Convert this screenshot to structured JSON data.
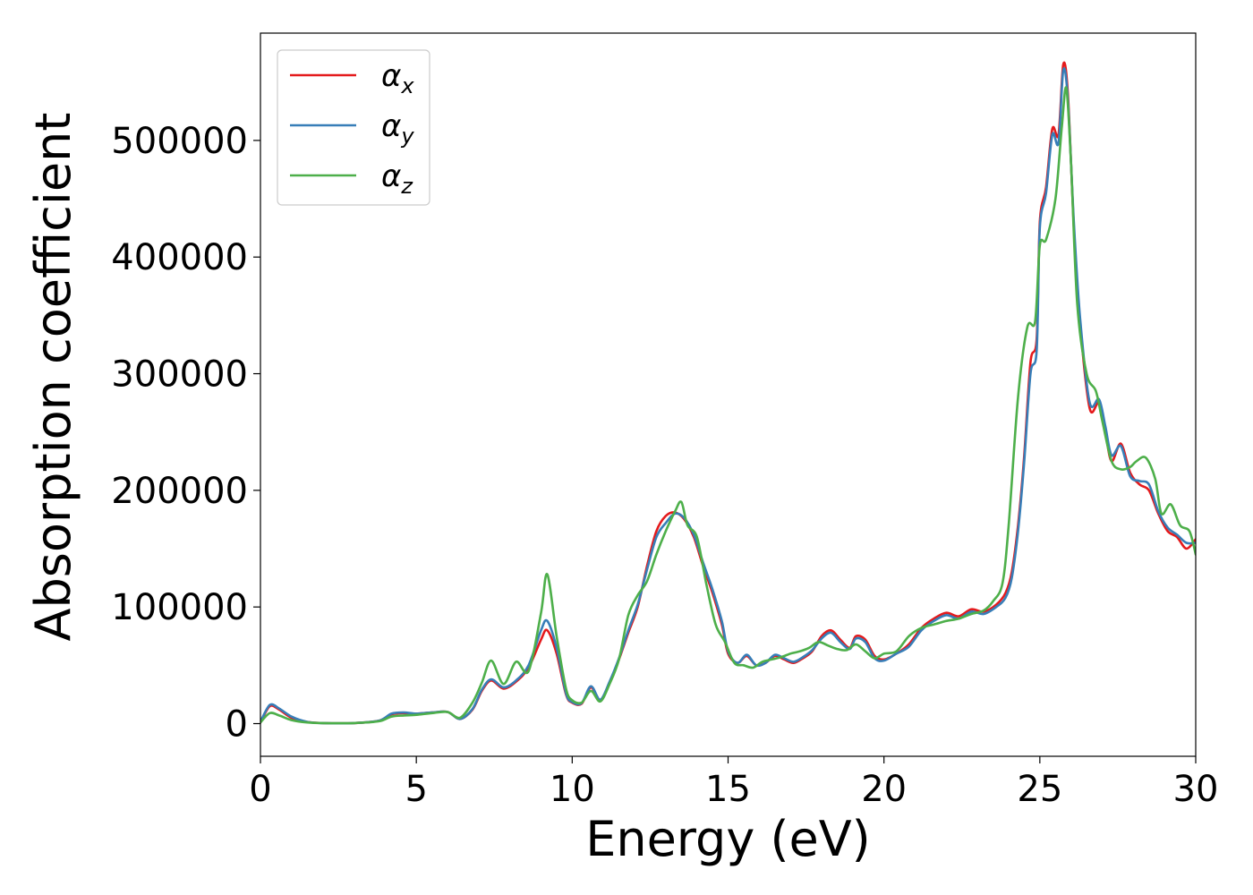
{
  "chart_data": {
    "type": "line",
    "title": "",
    "xlabel": "Energy (eV)",
    "ylabel": "Absorption coefficient",
    "xlim": [
      0,
      30
    ],
    "ylim": [
      -28000,
      592000
    ],
    "xticks": [
      0,
      5,
      10,
      15,
      20,
      25,
      30
    ],
    "yticks": [
      0,
      100000,
      200000,
      300000,
      400000,
      500000
    ],
    "xtick_labels": [
      "0",
      "5",
      "10",
      "15",
      "20",
      "25",
      "30"
    ],
    "ytick_labels": [
      "0",
      "100000",
      "200000",
      "300000",
      "400000",
      "500000"
    ],
    "grid": false,
    "legend_position": "top-left",
    "series": [
      {
        "name": "αx",
        "name_base": "α",
        "name_sub": "x",
        "color": "#e41a1c",
        "x": [
          0,
          0.3,
          0.6,
          1.0,
          1.5,
          2.0,
          3.0,
          3.8,
          4.2,
          4.6,
          5.0,
          5.5,
          6.0,
          6.4,
          6.8,
          7.1,
          7.4,
          7.8,
          8.2,
          8.6,
          9.0,
          9.2,
          9.5,
          9.8,
          10.0,
          10.3,
          10.6,
          10.9,
          11.2,
          11.5,
          11.8,
          12.1,
          12.4,
          12.7,
          13.0,
          13.3,
          13.6,
          13.9,
          14.2,
          14.5,
          14.8,
          15.0,
          15.3,
          15.6,
          15.9,
          16.2,
          16.5,
          16.8,
          17.1,
          17.4,
          17.7,
          18.0,
          18.3,
          18.6,
          18.9,
          19.1,
          19.4,
          19.7,
          20.0,
          20.4,
          20.8,
          21.2,
          21.6,
          22.0,
          22.4,
          22.8,
          23.2,
          23.6,
          23.9,
          24.1,
          24.3,
          24.5,
          24.7,
          24.9,
          25.0,
          25.2,
          25.4,
          25.6,
          25.75,
          25.9,
          26.1,
          26.3,
          26.6,
          26.9,
          27.1,
          27.3,
          27.6,
          27.9,
          28.2,
          28.5,
          28.8,
          29.1,
          29.4,
          29.7,
          30.0
        ],
        "y": [
          1000,
          15000,
          12000,
          5000,
          1500,
          500,
          500,
          2500,
          8000,
          9000,
          8500,
          9500,
          10000,
          4000,
          12000,
          28000,
          37000,
          30000,
          36000,
          48000,
          72000,
          80000,
          60000,
          25000,
          18000,
          17000,
          31000,
          20000,
          35000,
          55000,
          78000,
          100000,
          135000,
          165000,
          178000,
          181000,
          175000,
          160000,
          135000,
          112000,
          85000,
          60000,
          52000,
          58000,
          50000,
          52000,
          58000,
          55000,
          52000,
          56000,
          62000,
          75000,
          80000,
          72000,
          65000,
          75000,
          72000,
          58000,
          55000,
          60000,
          68000,
          82000,
          90000,
          95000,
          92000,
          98000,
          96000,
          102000,
          112000,
          130000,
          170000,
          230000,
          310000,
          330000,
          430000,
          460000,
          510000,
          505000,
          565000,
          540000,
          420000,
          340000,
          270000,
          275000,
          250000,
          225000,
          240000,
          215000,
          205000,
          200000,
          180000,
          165000,
          160000,
          150000,
          158000
        ]
      },
      {
        "name": "αy",
        "name_base": "α",
        "name_sub": "y",
        "color": "#377eb8",
        "x": [
          0,
          0.3,
          0.6,
          1.0,
          1.5,
          2.0,
          3.0,
          3.8,
          4.2,
          4.6,
          5.0,
          5.5,
          6.0,
          6.4,
          6.8,
          7.1,
          7.4,
          7.8,
          8.2,
          8.6,
          9.0,
          9.2,
          9.5,
          9.8,
          10.0,
          10.3,
          10.6,
          10.9,
          11.2,
          11.5,
          11.8,
          12.1,
          12.4,
          12.7,
          13.0,
          13.3,
          13.6,
          13.9,
          14.2,
          14.5,
          14.8,
          15.0,
          15.3,
          15.6,
          15.9,
          16.2,
          16.5,
          16.8,
          17.1,
          17.4,
          17.7,
          18.0,
          18.3,
          18.6,
          18.9,
          19.1,
          19.4,
          19.7,
          20.0,
          20.4,
          20.8,
          21.2,
          21.6,
          22.0,
          22.4,
          22.8,
          23.2,
          23.6,
          23.9,
          24.1,
          24.3,
          24.5,
          24.7,
          24.9,
          25.0,
          25.2,
          25.4,
          25.6,
          25.75,
          25.9,
          26.1,
          26.3,
          26.6,
          26.9,
          27.1,
          27.3,
          27.6,
          27.9,
          28.2,
          28.5,
          28.8,
          29.1,
          29.4,
          29.7,
          30.0
        ],
        "y": [
          1500,
          16000,
          13000,
          6000,
          1500,
          500,
          500,
          2500,
          8500,
          9500,
          8500,
          9500,
          10000,
          4000,
          12500,
          29000,
          38000,
          31000,
          37000,
          50000,
          80000,
          88000,
          65000,
          26000,
          18500,
          17500,
          32000,
          20500,
          36000,
          56000,
          80000,
          102000,
          132000,
          160000,
          172000,
          180000,
          176000,
          162000,
          138000,
          115000,
          88000,
          62000,
          52000,
          59000,
          50000,
          52000,
          59000,
          56000,
          53000,
          57000,
          63000,
          73000,
          78000,
          70000,
          64000,
          73000,
          70000,
          56000,
          54000,
          60000,
          66000,
          80000,
          88000,
          93000,
          90000,
          96000,
          94000,
          100000,
          108000,
          125000,
          165000,
          225000,
          300000,
          320000,
          425000,
          455000,
          505000,
          498000,
          560000,
          535000,
          425000,
          345000,
          275000,
          278000,
          255000,
          230000,
          238000,
          212000,
          208000,
          205000,
          182000,
          168000,
          162000,
          155000,
          155000
        ]
      },
      {
        "name": "αz",
        "name_base": "α",
        "name_sub": "z",
        "color": "#4daf4a",
        "x": [
          0,
          0.3,
          0.6,
          1.0,
          1.5,
          2.0,
          3.0,
          3.8,
          4.2,
          4.6,
          5.0,
          5.5,
          6.0,
          6.4,
          6.8,
          7.1,
          7.4,
          7.8,
          8.2,
          8.6,
          9.0,
          9.2,
          9.5,
          9.8,
          10.0,
          10.3,
          10.6,
          10.9,
          11.2,
          11.5,
          11.8,
          12.1,
          12.4,
          12.7,
          13.0,
          13.3,
          13.5,
          13.7,
          14.0,
          14.3,
          14.6,
          14.9,
          15.2,
          15.5,
          15.8,
          16.1,
          16.4,
          16.7,
          17.0,
          17.3,
          17.6,
          17.9,
          18.2,
          18.5,
          18.8,
          19.1,
          19.4,
          19.7,
          20.0,
          20.4,
          20.8,
          21.2,
          21.6,
          22.0,
          22.4,
          22.8,
          23.2,
          23.5,
          23.8,
          24.0,
          24.3,
          24.6,
          24.85,
          25.0,
          25.2,
          25.5,
          25.7,
          25.85,
          26.0,
          26.2,
          26.5,
          26.8,
          27.0,
          27.3,
          27.6,
          27.9,
          28.1,
          28.4,
          28.7,
          28.9,
          29.2,
          29.5,
          29.8,
          30.0
        ],
        "y": [
          1000,
          9000,
          7000,
          3000,
          1000,
          500,
          500,
          2000,
          6000,
          7000,
          7500,
          9000,
          10000,
          5000,
          18000,
          35000,
          54000,
          34000,
          53000,
          45000,
          95000,
          128000,
          75000,
          30000,
          20000,
          18000,
          28000,
          19000,
          34000,
          55000,
          93000,
          110000,
          122000,
          145000,
          165000,
          182000,
          190000,
          170000,
          160000,
          120000,
          85000,
          70000,
          52000,
          50000,
          48000,
          53000,
          55000,
          57000,
          60000,
          62000,
          65000,
          70000,
          67000,
          64000,
          63000,
          68000,
          62000,
          56000,
          60000,
          62000,
          75000,
          82000,
          85000,
          88000,
          90000,
          94000,
          97000,
          105000,
          120000,
          170000,
          280000,
          340000,
          345000,
          410000,
          415000,
          450000,
          510000,
          545000,
          480000,
          360000,
          300000,
          285000,
          260000,
          225000,
          218000,
          220000,
          225000,
          228000,
          210000,
          180000,
          188000,
          170000,
          165000,
          145000
        ]
      }
    ]
  }
}
